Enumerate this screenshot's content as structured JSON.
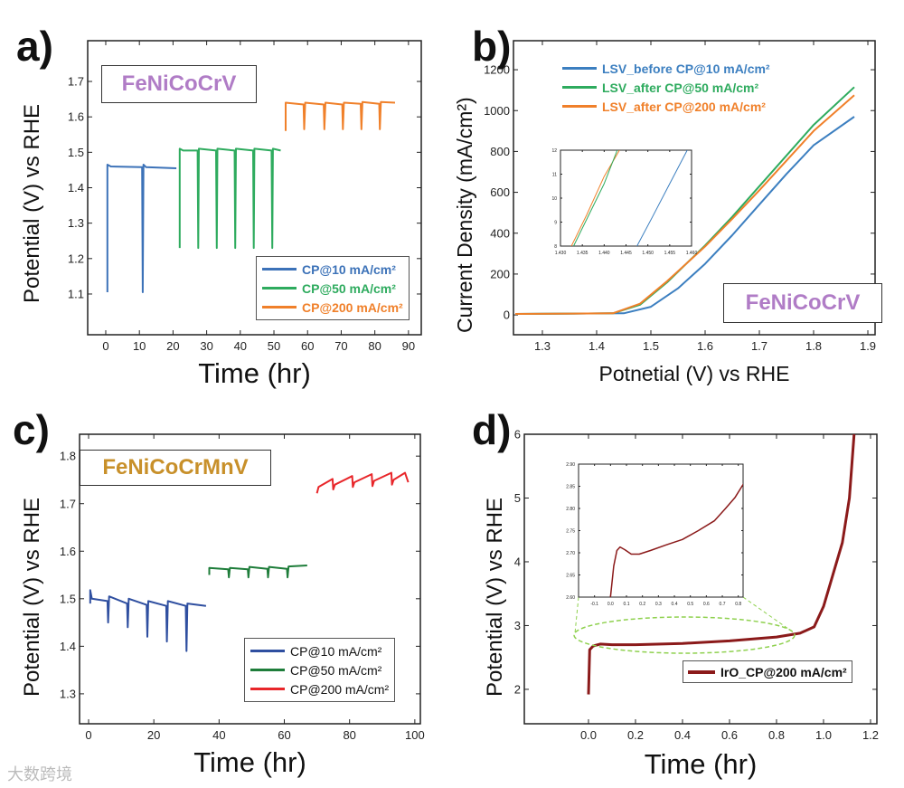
{
  "watermark": "大数跨境",
  "chart_data": [
    {
      "panel": "a)",
      "type": "line",
      "title": "FeNiCoCrV",
      "title_color": "#b07cc6",
      "xlabel": "Time (hr)",
      "ylabel": "Potential (V) vs RHE",
      "xticks": [
        0,
        10,
        20,
        30,
        40,
        50,
        60,
        70,
        80,
        90
      ],
      "yticks": [
        1.1,
        1.2,
        1.3,
        1.4,
        1.5,
        1.6,
        1.7
      ],
      "ydecimals": 1,
      "xdecimals": 0,
      "legend_position": "bottom-right",
      "legend_bold": true,
      "series": [
        {
          "name": "CP@10 mA/cm²",
          "color": "#3c72b8",
          "points": [
            [
              0.5,
              1.105
            ],
            [
              0.5,
              1.465
            ],
            [
              1.5,
              1.46
            ],
            [
              10.8,
              1.458
            ],
            [
              11,
              1.105
            ],
            [
              11.2,
              1.465
            ],
            [
              12,
              1.458
            ],
            [
              21,
              1.455
            ]
          ]
        },
        {
          "name": "CP@50 mA/cm²",
          "color": "#2eab5e",
          "points": [
            [
              22,
              1.23
            ],
            [
              22,
              1.51
            ],
            [
              23,
              1.505
            ],
            [
              27.3,
              1.505
            ],
            [
              27.5,
              1.23
            ],
            [
              27.7,
              1.51
            ],
            [
              32.8,
              1.505
            ],
            [
              33,
              1.23
            ],
            [
              33.2,
              1.51
            ],
            [
              38.3,
              1.505
            ],
            [
              38.5,
              1.23
            ],
            [
              38.7,
              1.51
            ],
            [
              43.8,
              1.505
            ],
            [
              44,
              1.23
            ],
            [
              44.2,
              1.51
            ],
            [
              49.3,
              1.505
            ],
            [
              49.5,
              1.23
            ],
            [
              49.7,
              1.51
            ],
            [
              52,
              1.505
            ]
          ]
        },
        {
          "name": "CP@200 mA/cm²",
          "color": "#f0802a",
          "points": [
            [
              53.5,
              1.56
            ],
            [
              53.5,
              1.64
            ],
            [
              58.8,
              1.635
            ],
            [
              59,
              1.565
            ],
            [
              59.3,
              1.64
            ],
            [
              64.8,
              1.635
            ],
            [
              65,
              1.565
            ],
            [
              65.3,
              1.64
            ],
            [
              70.3,
              1.635
            ],
            [
              70.5,
              1.565
            ],
            [
              70.8,
              1.64
            ],
            [
              75.8,
              1.637
            ],
            [
              76,
              1.565
            ],
            [
              76.3,
              1.642
            ],
            [
              81.3,
              1.637
            ],
            [
              81.5,
              1.565
            ],
            [
              81.8,
              1.642
            ],
            [
              86,
              1.64
            ]
          ]
        }
      ]
    },
    {
      "panel": "b)",
      "type": "line",
      "title": "FeNiCoCrV",
      "title_color": "#b07cc6",
      "xlabel": "Potnetial (V) vs RHE",
      "ylabel": "Current Density (mA/cm²)",
      "xticks": [
        1.3,
        1.4,
        1.5,
        1.6,
        1.7,
        1.8,
        1.9
      ],
      "yticks": [
        0,
        200,
        400,
        600,
        800,
        1000,
        1200
      ],
      "ydecimals": 0,
      "xdecimals": 1,
      "legend_position": "top-left",
      "legend_bold": true,
      "series": [
        {
          "name": "LSV_before CP@10 mA/cm²",
          "color": "#3c7fc0",
          "points": [
            [
              1.25,
              5
            ],
            [
              1.45,
              8
            ],
            [
              1.5,
              40
            ],
            [
              1.55,
              130
            ],
            [
              1.6,
              250
            ],
            [
              1.65,
              390
            ],
            [
              1.7,
              540
            ],
            [
              1.75,
              690
            ],
            [
              1.8,
              830
            ],
            [
              1.875,
              970
            ]
          ]
        },
        {
          "name": "LSV_after CP@50 mA/cm²",
          "color": "#2eab5e",
          "points": [
            [
              1.25,
              5
            ],
            [
              1.43,
              8
            ],
            [
              1.48,
              50
            ],
            [
              1.53,
              160
            ],
            [
              1.6,
              340
            ],
            [
              1.65,
              480
            ],
            [
              1.7,
              630
            ],
            [
              1.75,
              780
            ],
            [
              1.8,
              930
            ],
            [
              1.875,
              1115
            ]
          ]
        },
        {
          "name": "LSV_after CP@200 mA/cm²",
          "color": "#f0802a",
          "points": [
            [
              1.25,
              5
            ],
            [
              1.43,
              8
            ],
            [
              1.48,
              55
            ],
            [
              1.53,
              165
            ],
            [
              1.6,
              335
            ],
            [
              1.65,
              470
            ],
            [
              1.7,
              610
            ],
            [
              1.75,
              755
            ],
            [
              1.8,
              900
            ],
            [
              1.875,
              1075
            ]
          ]
        }
      ],
      "inset": {
        "xticks": [
          1.43,
          1.435,
          1.44,
          1.445,
          1.45,
          1.455,
          1.46
        ],
        "xdecimals": 3,
        "yticks": [
          8,
          9,
          10,
          11,
          12
        ],
        "ydecimals": 0,
        "series": [
          {
            "color": "#f0802a",
            "points": [
              [
                1.4325,
                8
              ],
              [
                1.436,
                9.3
              ],
              [
                1.44,
                10.9
              ],
              [
                1.4435,
                12
              ]
            ]
          },
          {
            "color": "#2eab5e",
            "points": [
              [
                1.433,
                8
              ],
              [
                1.4365,
                9.3
              ],
              [
                1.44,
                10.6
              ],
              [
                1.443,
                12
              ]
            ]
          },
          {
            "color": "#3c7fc0",
            "points": [
              [
                1.4475,
                8
              ],
              [
                1.451,
                9.2
              ],
              [
                1.455,
                10.6
              ],
              [
                1.459,
                12
              ]
            ]
          }
        ]
      }
    },
    {
      "panel": "c)",
      "type": "line",
      "title": "FeNiCoCrMnV",
      "title_color": "#c8902a",
      "xlabel": "Time (hr)",
      "ylabel": "Potential (V) vs RHE",
      "xticks": [
        0,
        20,
        40,
        60,
        80,
        100
      ],
      "yticks": [
        1.3,
        1.4,
        1.5,
        1.6,
        1.7,
        1.8
      ],
      "ydecimals": 1,
      "xdecimals": 0,
      "legend_position": "bottom-right",
      "legend_bold": false,
      "series": [
        {
          "name": "CP@10 mA/cm²",
          "color": "#2f4fa0",
          "points": [
            [
              0.5,
              1.49
            ],
            [
              0.5,
              1.518
            ],
            [
              1,
              1.5
            ],
            [
              5.8,
              1.495
            ],
            [
              6,
              1.45
            ],
            [
              6.3,
              1.505
            ],
            [
              11.8,
              1.49
            ],
            [
              12,
              1.44
            ],
            [
              12.3,
              1.5
            ],
            [
              17.8,
              1.487
            ],
            [
              18,
              1.42
            ],
            [
              18.3,
              1.495
            ],
            [
              23.8,
              1.485
            ],
            [
              24,
              1.41
            ],
            [
              24.3,
              1.495
            ],
            [
              29.8,
              1.485
            ],
            [
              30,
              1.39
            ],
            [
              30.3,
              1.49
            ],
            [
              36,
              1.485
            ]
          ]
        },
        {
          "name": "CP@50 mA/cm²",
          "color": "#1e7d3a",
          "points": [
            [
              37,
              1.55
            ],
            [
              37,
              1.565
            ],
            [
              42.8,
              1.562
            ],
            [
              43,
              1.545
            ],
            [
              43.3,
              1.565
            ],
            [
              48.8,
              1.562
            ],
            [
              49,
              1.545
            ],
            [
              49.3,
              1.567
            ],
            [
              54.8,
              1.563
            ],
            [
              55,
              1.545
            ],
            [
              55.3,
              1.567
            ],
            [
              60.8,
              1.563
            ],
            [
              61,
              1.545
            ],
            [
              61.3,
              1.568
            ],
            [
              67,
              1.57
            ]
          ]
        },
        {
          "name": "CP@200 mA/cm²",
          "color": "#e8262a",
          "points": [
            [
              70,
              1.722
            ],
            [
              70.5,
              1.735
            ],
            [
              74.8,
              1.752
            ],
            [
              75,
              1.73
            ],
            [
              75.5,
              1.74
            ],
            [
              80.8,
              1.758
            ],
            [
              81,
              1.735
            ],
            [
              81.5,
              1.745
            ],
            [
              86.8,
              1.762
            ],
            [
              87,
              1.737
            ],
            [
              87.5,
              1.748
            ],
            [
              92.8,
              1.765
            ],
            [
              93,
              1.74
            ],
            [
              93.5,
              1.75
            ],
            [
              97,
              1.765
            ],
            [
              98,
              1.745
            ]
          ]
        }
      ]
    },
    {
      "panel": "d)",
      "type": "line",
      "xlabel": "Time (hr)",
      "ylabel": "Potential (V) vs RHE",
      "xticks": [
        0,
        0.2,
        0.4,
        0.6,
        0.8,
        1.0,
        1.2
      ],
      "yticks": [
        2,
        3,
        4,
        5,
        6
      ],
      "ydecimals": 0,
      "xdecimals": 1,
      "legend_position": "bottom-right",
      "legend_bold": true,
      "series": [
        {
          "name": "IrO_CP@200 mA/cm²",
          "color": "#8b1a1a",
          "points": [
            [
              0,
              1.92
            ],
            [
              0.005,
              2.62
            ],
            [
              0.02,
              2.68
            ],
            [
              0.05,
              2.71
            ],
            [
              0.1,
              2.7
            ],
            [
              0.2,
              2.7
            ],
            [
              0.4,
              2.72
            ],
            [
              0.6,
              2.76
            ],
            [
              0.8,
              2.82
            ],
            [
              0.9,
              2.88
            ],
            [
              0.96,
              2.98
            ],
            [
              1.0,
              3.3
            ],
            [
              1.04,
              3.8
            ],
            [
              1.08,
              4.3
            ],
            [
              1.11,
              5.0
            ],
            [
              1.13,
              6.0
            ]
          ]
        }
      ],
      "inset": {
        "xticks": [
          -0.1,
          0.0,
          0.1,
          0.2,
          0.3,
          0.4,
          0.5,
          0.6,
          0.7,
          0.8
        ],
        "xdecimals": 1,
        "yticks": [
          2.6,
          2.65,
          2.7,
          2.75,
          2.8,
          2.85,
          2.9
        ],
        "ydecimals": 2,
        "series": [
          {
            "color": "#8b1a1a",
            "points": [
              [
                0,
                2.6
              ],
              [
                0.02,
                2.67
              ],
              [
                0.04,
                2.705
              ],
              [
                0.06,
                2.713
              ],
              [
                0.09,
                2.707
              ],
              [
                0.13,
                2.697
              ],
              [
                0.18,
                2.697
              ],
              [
                0.25,
                2.705
              ],
              [
                0.35,
                2.718
              ],
              [
                0.45,
                2.73
              ],
              [
                0.55,
                2.75
              ],
              [
                0.65,
                2.772
              ],
              [
                0.72,
                2.8
              ],
              [
                0.78,
                2.825
              ],
              [
                0.84,
                2.86
              ]
            ]
          }
        ]
      }
    }
  ]
}
